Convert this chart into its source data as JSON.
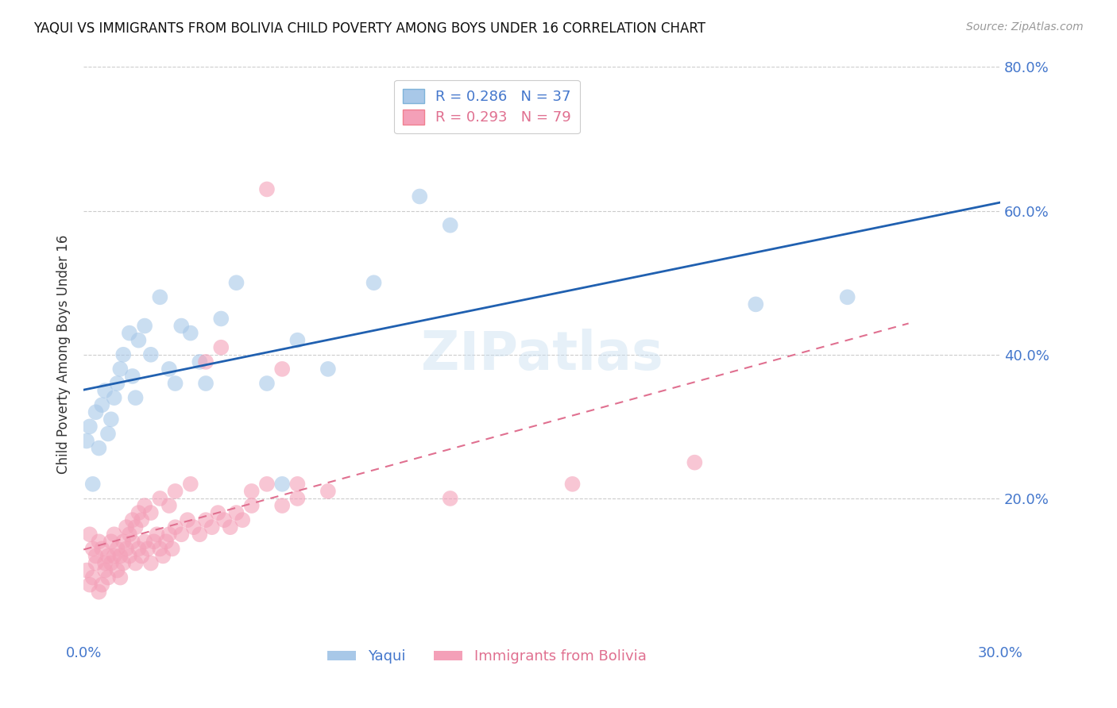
{
  "title": "YAQUI VS IMMIGRANTS FROM BOLIVIA CHILD POVERTY AMONG BOYS UNDER 16 CORRELATION CHART",
  "source": "Source: ZipAtlas.com",
  "ylabel": "Child Poverty Among Boys Under 16",
  "xlim": [
    0.0,
    0.3
  ],
  "ylim": [
    0.0,
    0.8
  ],
  "yaqui_color": "#a8c8e8",
  "bolivia_color": "#f4a0b8",
  "yaqui_line_color": "#2060b0",
  "bolivia_line_color": "#e07090",
  "watermark": "ZIPatlas",
  "yaqui_x": [
    0.001,
    0.002,
    0.003,
    0.004,
    0.005,
    0.006,
    0.007,
    0.008,
    0.009,
    0.01,
    0.011,
    0.012,
    0.013,
    0.015,
    0.016,
    0.017,
    0.018,
    0.02,
    0.022,
    0.025,
    0.028,
    0.03,
    0.032,
    0.035,
    0.038,
    0.04,
    0.045,
    0.05,
    0.06,
    0.065,
    0.07,
    0.08,
    0.095,
    0.11,
    0.12,
    0.22,
    0.25
  ],
  "yaqui_y": [
    0.28,
    0.3,
    0.22,
    0.32,
    0.27,
    0.33,
    0.35,
    0.29,
    0.31,
    0.34,
    0.36,
    0.38,
    0.4,
    0.43,
    0.37,
    0.34,
    0.42,
    0.44,
    0.4,
    0.48,
    0.38,
    0.36,
    0.44,
    0.43,
    0.39,
    0.36,
    0.45,
    0.5,
    0.36,
    0.22,
    0.42,
    0.38,
    0.5,
    0.62,
    0.58,
    0.47,
    0.48
  ],
  "bolivia_x": [
    0.001,
    0.002,
    0.003,
    0.004,
    0.005,
    0.006,
    0.007,
    0.008,
    0.009,
    0.01,
    0.011,
    0.012,
    0.013,
    0.014,
    0.015,
    0.016,
    0.017,
    0.018,
    0.019,
    0.02,
    0.021,
    0.022,
    0.023,
    0.024,
    0.025,
    0.026,
    0.027,
    0.028,
    0.029,
    0.03,
    0.032,
    0.034,
    0.036,
    0.038,
    0.04,
    0.042,
    0.044,
    0.046,
    0.048,
    0.05,
    0.052,
    0.055,
    0.06,
    0.065,
    0.07,
    0.002,
    0.003,
    0.004,
    0.005,
    0.006,
    0.007,
    0.008,
    0.009,
    0.01,
    0.011,
    0.012,
    0.013,
    0.014,
    0.015,
    0.016,
    0.017,
    0.018,
    0.019,
    0.02,
    0.022,
    0.025,
    0.028,
    0.03,
    0.035,
    0.04,
    0.045,
    0.055,
    0.06,
    0.065,
    0.07,
    0.08,
    0.12,
    0.16,
    0.2
  ],
  "bolivia_y": [
    0.1,
    0.08,
    0.09,
    0.11,
    0.07,
    0.08,
    0.1,
    0.09,
    0.11,
    0.12,
    0.1,
    0.09,
    0.11,
    0.13,
    0.12,
    0.14,
    0.11,
    0.13,
    0.12,
    0.14,
    0.13,
    0.11,
    0.14,
    0.15,
    0.13,
    0.12,
    0.14,
    0.15,
    0.13,
    0.16,
    0.15,
    0.17,
    0.16,
    0.15,
    0.17,
    0.16,
    0.18,
    0.17,
    0.16,
    0.18,
    0.17,
    0.19,
    0.63,
    0.38,
    0.2,
    0.15,
    0.13,
    0.12,
    0.14,
    0.13,
    0.11,
    0.12,
    0.14,
    0.15,
    0.13,
    0.12,
    0.14,
    0.16,
    0.15,
    0.17,
    0.16,
    0.18,
    0.17,
    0.19,
    0.18,
    0.2,
    0.19,
    0.21,
    0.22,
    0.39,
    0.41,
    0.21,
    0.22,
    0.19,
    0.22,
    0.21,
    0.2,
    0.22,
    0.25
  ]
}
